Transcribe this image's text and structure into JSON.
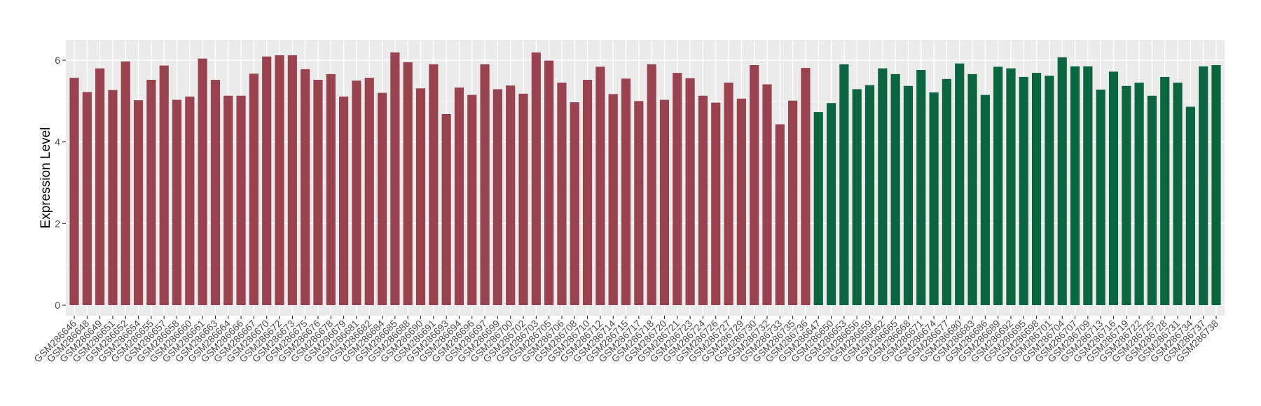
{
  "chart_data": {
    "type": "bar",
    "title": "",
    "xlabel": "",
    "ylabel": "Expression Level",
    "ylim": [
      0,
      6.5
    ],
    "yticks": [
      0,
      2,
      4,
      6
    ],
    "grid": true,
    "legend": "none",
    "categories": [
      "GSM286646",
      "GSM286648",
      "GSM286649",
      "GSM286651",
      "GSM286652",
      "GSM286654",
      "GSM286655",
      "GSM286657",
      "GSM286658",
      "GSM286660",
      "GSM286661",
      "GSM286663",
      "GSM286664",
      "GSM286666",
      "GSM286667",
      "GSM286670",
      "GSM286672",
      "GSM286673",
      "GSM286675",
      "GSM286676",
      "GSM286678",
      "GSM286679",
      "GSM286681",
      "GSM286682",
      "GSM286684",
      "GSM286685",
      "GSM286688",
      "GSM286690",
      "GSM286691",
      "GSM286693",
      "GSM286694",
      "GSM286696",
      "GSM286697",
      "GSM286699",
      "GSM286700",
      "GSM286702",
      "GSM286703",
      "GSM286705",
      "GSM286706",
      "GSM286708",
      "GSM286710",
      "GSM286712",
      "GSM286714",
      "GSM286715",
      "GSM286717",
      "GSM286718",
      "GSM286720",
      "GSM286721",
      "GSM286723",
      "GSM286724",
      "GSM286726",
      "GSM286727",
      "GSM286729",
      "GSM286730",
      "GSM286732",
      "GSM286733",
      "GSM286735",
      "GSM286736",
      "GSM286647",
      "GSM286650",
      "GSM286653",
      "GSM286656",
      "GSM286659",
      "GSM286662",
      "GSM286665",
      "GSM286668",
      "GSM286671",
      "GSM286674",
      "GSM286677",
      "GSM286680",
      "GSM286683",
      "GSM286686",
      "GSM286689",
      "GSM286692",
      "GSM286695",
      "GSM286698",
      "GSM286701",
      "GSM286704",
      "GSM286707",
      "GSM286709",
      "GSM286713",
      "GSM286716",
      "GSM286719",
      "GSM286722",
      "GSM286725",
      "GSM286728",
      "GSM286731",
      "GSM286734",
      "GSM286737",
      "GSM286738"
    ],
    "values": [
      5.57,
      5.22,
      5.8,
      5.27,
      5.97,
      5.02,
      5.52,
      5.87,
      5.03,
      5.11,
      6.04,
      5.52,
      5.13,
      5.13,
      5.67,
      6.09,
      6.12,
      6.12,
      5.78,
      5.52,
      5.66,
      5.11,
      5.5,
      5.57,
      5.2,
      6.19,
      5.95,
      5.31,
      5.9,
      4.68,
      5.33,
      5.15,
      5.9,
      5.29,
      5.38,
      5.18,
      6.19,
      5.99,
      5.45,
      4.97,
      5.52,
      5.84,
      5.17,
      5.55,
      5.0,
      5.9,
      5.03,
      5.69,
      5.56,
      5.13,
      4.96,
      5.45,
      5.06,
      5.88,
      5.41,
      4.43,
      5.01,
      5.81,
      4.73,
      4.95,
      5.9,
      5.29,
      5.39,
      5.8,
      5.66,
      5.37,
      5.76,
      5.21,
      5.54,
      5.92,
      5.66,
      5.15,
      5.84,
      5.8,
      5.59,
      5.69,
      5.62,
      6.07,
      5.85,
      5.85,
      5.28,
      5.72,
      5.37,
      5.45,
      5.13,
      5.59,
      5.45,
      4.86,
      5.85,
      5.88
    ],
    "groups": [
      {
        "color": "#9a4350",
        "count": 58
      },
      {
        "color": "#0b6640",
        "count": 32
      }
    ],
    "panel_background": "#ebebeb",
    "grid_color": "#ffffff"
  }
}
